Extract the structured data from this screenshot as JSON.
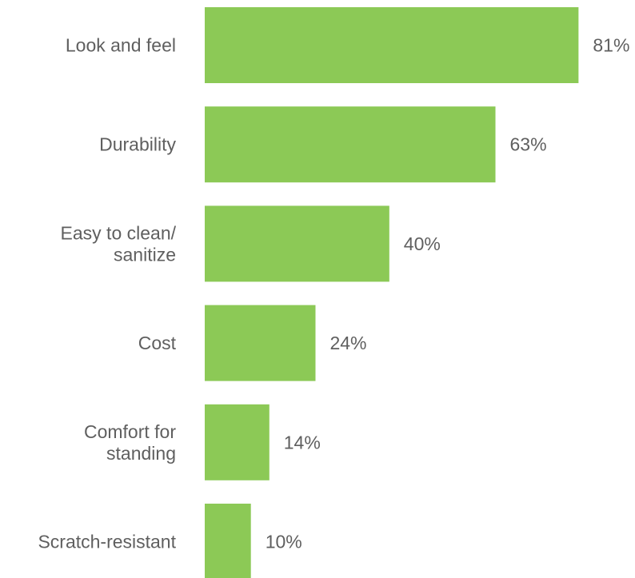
{
  "chart_data": {
    "type": "bar",
    "orientation": "horizontal",
    "title": "",
    "xlabel": "",
    "ylabel": "",
    "grid": false,
    "legend": "none",
    "value_suffix": "%",
    "xlim": [
      0,
      100
    ],
    "color": "#8cc956",
    "categories": [
      [
        "Look and feel"
      ],
      [
        "Durability"
      ],
      [
        "Easy to clean/",
        "sanitize"
      ],
      [
        "Cost"
      ],
      [
        "Comfort for",
        "standing"
      ],
      [
        "Scratch-resistant"
      ]
    ],
    "values": [
      81,
      63,
      40,
      24,
      14,
      10
    ],
    "value_labels": [
      "81%",
      "63%",
      "40%",
      "24%",
      "14%",
      "10%"
    ]
  }
}
